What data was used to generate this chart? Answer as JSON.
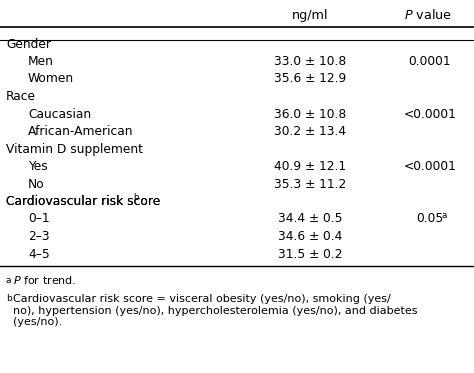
{
  "header_col2": "ng/ml",
  "header_col3": "P value",
  "rows": [
    {
      "label": "Gender",
      "indent": false,
      "value": "",
      "pvalue": ""
    },
    {
      "label": "Men",
      "indent": true,
      "value": "33.0 ± 10.8",
      "pvalue": "0.0001"
    },
    {
      "label": "Women",
      "indent": true,
      "value": "35.6 ± 12.9",
      "pvalue": ""
    },
    {
      "label": "Race",
      "indent": false,
      "value": "",
      "pvalue": ""
    },
    {
      "label": "Caucasian",
      "indent": true,
      "value": "36.0 ± 10.8",
      "pvalue": "<0.0001"
    },
    {
      "label": "African-American",
      "indent": true,
      "value": "30.2 ± 13.4",
      "pvalue": ""
    },
    {
      "label": "Vitamin D supplement",
      "indent": false,
      "value": "",
      "pvalue": ""
    },
    {
      "label": "Yes",
      "indent": true,
      "value": "40.9 ± 12.1",
      "pvalue": "<0.0001"
    },
    {
      "label": "No",
      "indent": true,
      "value": "35.3 ± 11.2",
      "pvalue": ""
    },
    {
      "label": "Cardiovascular risk score",
      "indent": false,
      "value": "",
      "pvalue": "",
      "superscript": "b"
    },
    {
      "label": "0–1",
      "indent": true,
      "value": "34.4 ± 0.5",
      "pvalue": "0.05",
      "pvalue_sup": "a"
    },
    {
      "label": "2–3",
      "indent": true,
      "value": "34.6 ± 0.4",
      "pvalue": ""
    },
    {
      "label": "4–5",
      "indent": true,
      "value": "31.5 ± 0.2",
      "pvalue": ""
    }
  ],
  "footnote_a": " P for trend.",
  "footnote_b": " Cardiovascular risk score = visceral obesity (yes/no), smoking (yes/\nno), hypertension (yes/no), hypercholesterolemia (yes/no), and diabetes\n(yes/no).",
  "footnote_a_sup": "a",
  "footnote_b_sup": "b",
  "bg_color": "#ffffff",
  "text_color": "#000000",
  "font_size": 8.8,
  "header_font_size": 9.2,
  "footnote_font_size": 8.0
}
